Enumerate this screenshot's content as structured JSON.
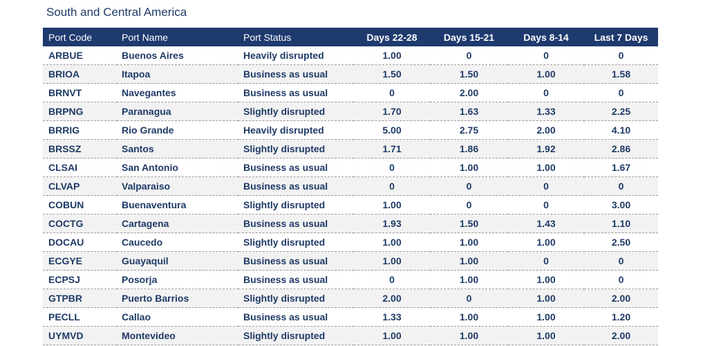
{
  "title": "South and Central America",
  "columns": [
    "Port Code",
    "Port Name",
    "Port Status",
    "Days 22-28",
    "Days 15-21",
    "Days 8-14",
    "Last 7 Days"
  ],
  "rows": [
    [
      "ARBUE",
      "Buenos Aires",
      "Heavily disrupted",
      "1.00",
      "0",
      "0",
      "0"
    ],
    [
      "BRIOA",
      "Itapoa",
      "Business as usual",
      "1.50",
      "1.50",
      "1.00",
      "1.58"
    ],
    [
      "BRNVT",
      "Navegantes",
      "Business as usual",
      "0",
      "2.00",
      "0",
      "0"
    ],
    [
      "BRPNG",
      "Paranagua",
      "Slightly disrupted",
      "1.70",
      "1.63",
      "1.33",
      "2.25"
    ],
    [
      "BRRIG",
      "Rio Grande",
      "Heavily disrupted",
      "5.00",
      "2.75",
      "2.00",
      "4.10"
    ],
    [
      "BRSSZ",
      "Santos",
      "Slightly disrupted",
      "1.71",
      "1.86",
      "1.92",
      "2.86"
    ],
    [
      "CLSAI",
      "San Antonio",
      "Business as usual",
      "0",
      "1.00",
      "1.00",
      "1.67"
    ],
    [
      "CLVAP",
      "Valparaiso",
      "Business as usual",
      "0",
      "0",
      "0",
      "0"
    ],
    [
      "COBUN",
      "Buenaventura",
      "Slightly disrupted",
      "1.00",
      "0",
      "0",
      "3.00"
    ],
    [
      "COCTG",
      "Cartagena",
      "Business as usual",
      "1.93",
      "1.50",
      "1.43",
      "1.10"
    ],
    [
      "DOCAU",
      "Caucedo",
      "Slightly disrupted",
      "1.00",
      "1.00",
      "1.00",
      "2.50"
    ],
    [
      "ECGYE",
      "Guayaquil",
      "Business as usual",
      "1.00",
      "1.00",
      "0",
      "0"
    ],
    [
      "ECPSJ",
      "Posorja",
      "Business as usual",
      "0",
      "1.00",
      "1.00",
      "0"
    ],
    [
      "GTPBR",
      "Puerto Barrios",
      "Slightly disrupted",
      "2.00",
      "0",
      "1.00",
      "2.00"
    ],
    [
      "PECLL",
      "Callao",
      "Business as usual",
      "1.33",
      "1.00",
      "1.00",
      "1.20"
    ],
    [
      "UYMVD",
      "Montevideo",
      "Slightly disrupted",
      "1.00",
      "1.00",
      "1.00",
      "2.00"
    ]
  ]
}
